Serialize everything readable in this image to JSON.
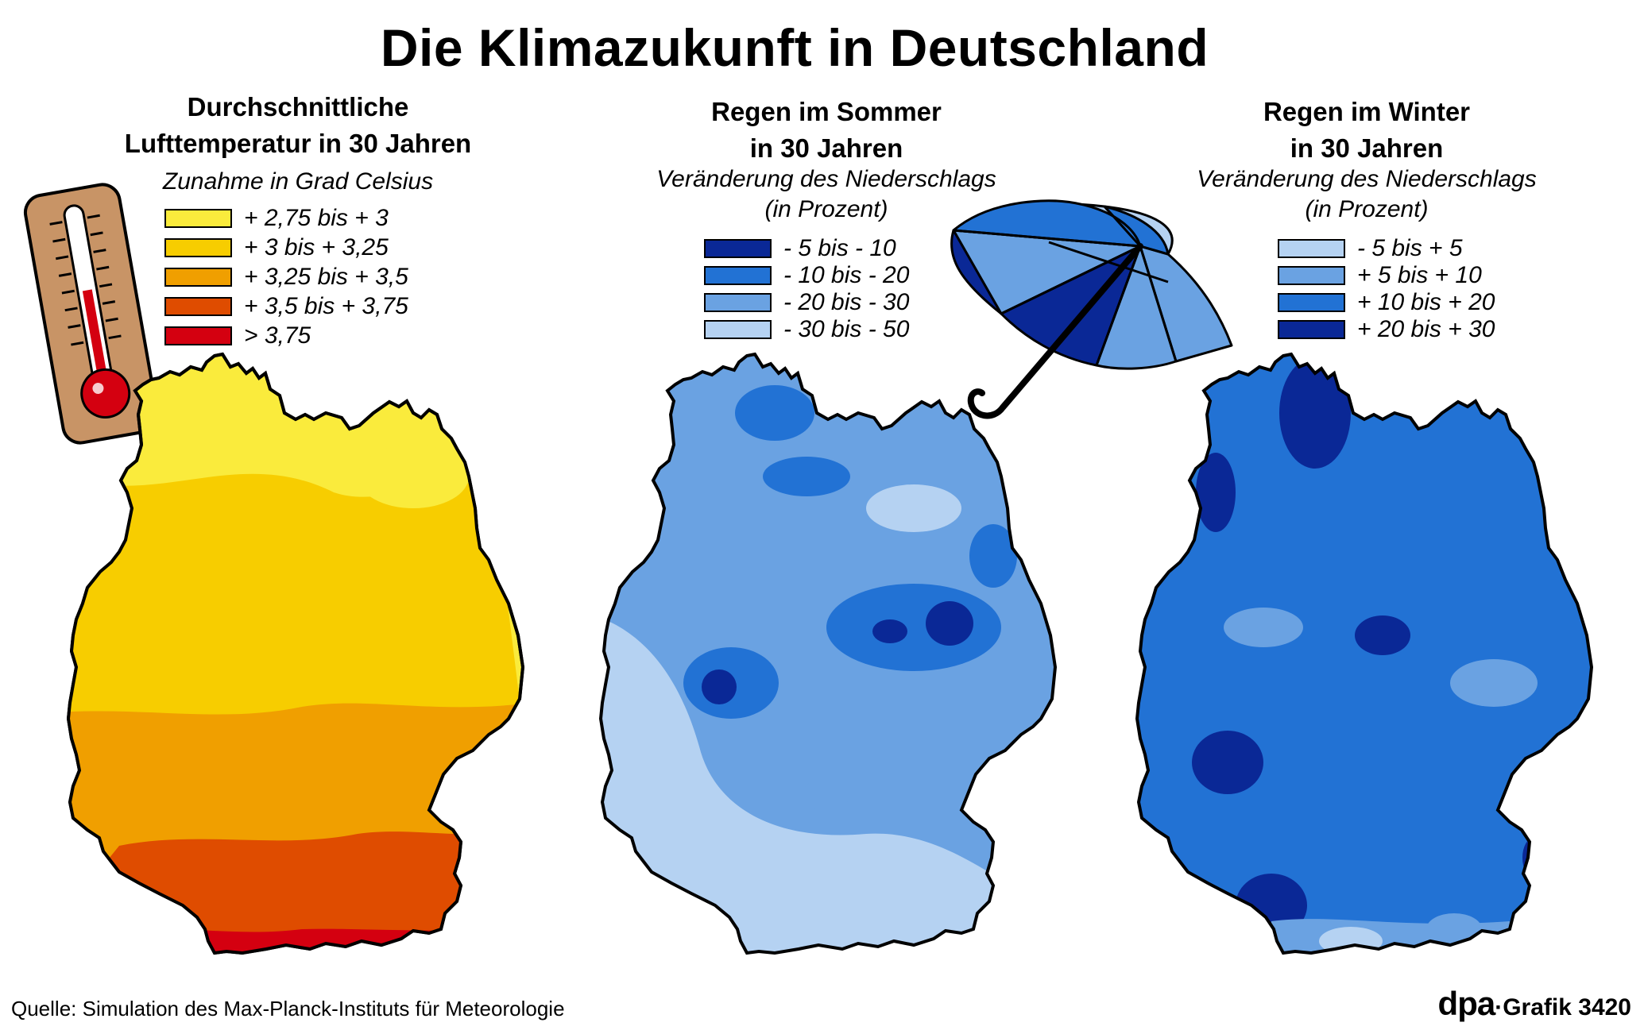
{
  "title": "Die Klimazukunft in Deutschland",
  "panels": [
    {
      "id": "temperature",
      "title_line1": "Durchschnittliche",
      "title_line2": "Lufttemperatur in 30 Jahren",
      "subtitle": "Zunahme in Grad Celsius",
      "legend": [
        {
          "label": "+ 2,75 bis + 3",
          "color": "#faeb3c"
        },
        {
          "label": "+ 3 bis + 3,25",
          "color": "#f7cd00"
        },
        {
          "label": "+ 3,25 bis + 3,5",
          "color": "#f09f00"
        },
        {
          "label": "+ 3,5 bis + 3,75",
          "color": "#df4c00"
        },
        {
          "label": "> 3,75",
          "color": "#d40010"
        }
      ]
    },
    {
      "id": "summer-rain",
      "title_line1": "Regen im Sommer",
      "title_line2": "in 30 Jahren",
      "subtitle_line1": "Veränderung des Niederschlags",
      "subtitle_line2": "(in Prozent)",
      "legend": [
        {
          "label": "- 5 bis - 10",
          "color": "#0a2896"
        },
        {
          "label": "- 10 bis - 20",
          "color": "#2272d4"
        },
        {
          "label": "- 20 bis - 30",
          "color": "#6aa2e2"
        },
        {
          "label": "- 30 bis - 50",
          "color": "#b5d2f2"
        }
      ]
    },
    {
      "id": "winter-rain",
      "title_line1": "Regen im Winter",
      "title_line2": "in 30 Jahren",
      "subtitle_line1": "Veränderung des Niederschlags",
      "subtitle_line2": "(in Prozent)",
      "legend": [
        {
          "label": "- 5 bis + 5",
          "color": "#b5d2f2"
        },
        {
          "label": "+ 5 bis + 10",
          "color": "#6aa2e2"
        },
        {
          "label": "+ 10 bis + 20",
          "color": "#2272d4"
        },
        {
          "label": "+ 20 bis + 30",
          "color": "#0a2896"
        }
      ]
    }
  ],
  "icons": {
    "thermometer": "thermometer-icon",
    "umbrella": "umbrella-icon"
  },
  "source": "Quelle: Simulation des Max-Planck-Instituts für Meteorologie",
  "credit": {
    "brand": "dpa",
    "separator": "·",
    "text": "Grafik 3420"
  }
}
